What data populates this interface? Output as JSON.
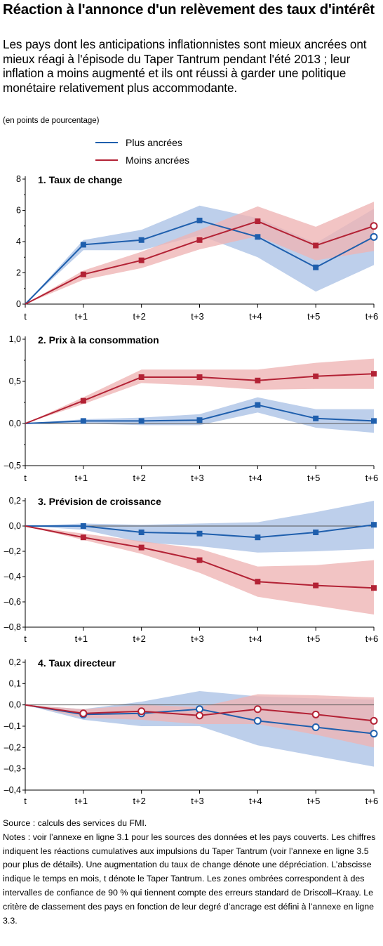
{
  "title": "Réaction à l'annonce d'un relèvement des taux d'intérêt",
  "subtitle": "Les pays dont les anticipations inflationnistes sont mieux ancrées ont mieux réagi à l'épisode du Taper Tantrum pendant l'été 2013 ; leur inflation a moins augmenté et ils ont réussi à garder une politique monétaire relativement plus accommodante.",
  "units": "(en points de pourcentage)",
  "colors": {
    "plus": "#1f5fad",
    "moins": "#b32235",
    "plus_band": "#aac2e6",
    "moins_band": "#eeb3b3"
  },
  "legend": [
    {
      "label": "Plus ancrées",
      "color": "#1f5fad"
    },
    {
      "label": "Moins ancrées",
      "color": "#b32235"
    }
  ],
  "chart_data": [
    {
      "type": "line",
      "title": "1. Taux de change",
      "x": [
        "t",
        "t+1",
        "t+2",
        "t+3",
        "t+4",
        "t+5",
        "t+6"
      ],
      "ylim": [
        0,
        8
      ],
      "yticks": [
        0,
        2,
        4,
        6,
        8
      ],
      "yticklabels": [
        "0",
        "2",
        "4",
        "6",
        "8"
      ],
      "series": [
        {
          "name": "Plus ancrées",
          "values": [
            0,
            3.8,
            4.1,
            5.35,
            4.3,
            2.35,
            4.3
          ],
          "lower": [
            0,
            3.45,
            3.45,
            4.4,
            3.0,
            0.8,
            2.5
          ],
          "upper": [
            0,
            4.1,
            4.75,
            6.3,
            5.5,
            3.9,
            6.1
          ],
          "markers": [
            "none",
            "square",
            "square",
            "square",
            "square",
            "square",
            "circle"
          ]
        },
        {
          "name": "Moins ancrées",
          "values": [
            0,
            1.9,
            2.8,
            4.1,
            5.3,
            3.75,
            5.0
          ],
          "lower": [
            0,
            1.55,
            2.3,
            3.5,
            4.35,
            2.8,
            3.4
          ],
          "upper": [
            0,
            2.15,
            3.35,
            4.75,
            6.25,
            4.95,
            6.55
          ],
          "markers": [
            "none",
            "square",
            "square",
            "square",
            "square",
            "square",
            "circle"
          ]
        }
      ]
    },
    {
      "type": "line",
      "title": "2. Prix à la consommation",
      "x": [
        "t",
        "t+1",
        "t+2",
        "t+3",
        "t+4",
        "t+5",
        "t+6"
      ],
      "ylim": [
        -0.5,
        1.0
      ],
      "yticks": [
        -0.5,
        0,
        0.5,
        1.0
      ],
      "yticklabels": [
        "–0,5",
        "0,0",
        "0,5",
        "1,0"
      ],
      "series": [
        {
          "name": "Plus ancrées",
          "values": [
            0,
            0.03,
            0.03,
            0.04,
            0.22,
            0.06,
            0.03
          ],
          "lower": [
            0,
            0.0,
            -0.02,
            -0.02,
            0.13,
            -0.05,
            -0.11
          ],
          "upper": [
            0,
            0.05,
            0.07,
            0.11,
            0.31,
            0.17,
            0.17
          ],
          "markers": [
            "none",
            "square",
            "square",
            "square",
            "square",
            "square",
            "square"
          ]
        },
        {
          "name": "Moins ancrées",
          "values": [
            0,
            0.27,
            0.55,
            0.55,
            0.51,
            0.56,
            0.59
          ],
          "lower": [
            0,
            0.23,
            0.48,
            0.45,
            0.4,
            0.41,
            0.41
          ],
          "upper": [
            0,
            0.31,
            0.64,
            0.64,
            0.64,
            0.72,
            0.77
          ],
          "markers": [
            "none",
            "square",
            "square",
            "square",
            "square",
            "square",
            "square"
          ]
        }
      ]
    },
    {
      "type": "line",
      "title": "3. Prévision de croissance",
      "x": [
        "t",
        "t+1",
        "t+2",
        "t+3",
        "t+4",
        "t+5",
        "t+6"
      ],
      "ylim": [
        -0.8,
        0.2
      ],
      "yticks": [
        -0.8,
        -0.6,
        -0.4,
        -0.2,
        0,
        0.2
      ],
      "yticklabels": [
        "–0,8",
        "–0,6",
        "–0,4",
        "–0,2",
        "0,0",
        "0,2"
      ],
      "series": [
        {
          "name": "Plus ancrées",
          "values": [
            0,
            0.0,
            -0.05,
            -0.06,
            -0.09,
            -0.05,
            0.01
          ],
          "lower": [
            0,
            -0.03,
            -0.13,
            -0.16,
            -0.21,
            -0.2,
            -0.18
          ],
          "upper": [
            0,
            0.02,
            0.01,
            0.02,
            0.03,
            0.11,
            0.2
          ],
          "markers": [
            "none",
            "square",
            "square",
            "square",
            "square",
            "square",
            "square"
          ]
        },
        {
          "name": "Moins ancrées",
          "values": [
            0,
            -0.09,
            -0.17,
            -0.27,
            -0.44,
            -0.47,
            -0.49
          ],
          "lower": [
            0,
            -0.11,
            -0.22,
            -0.37,
            -0.56,
            -0.63,
            -0.7
          ],
          "upper": [
            0,
            -0.06,
            -0.12,
            -0.18,
            -0.32,
            -0.31,
            -0.27
          ],
          "markers": [
            "none",
            "square",
            "square",
            "square",
            "square",
            "square",
            "square"
          ]
        }
      ]
    },
    {
      "type": "line",
      "title": "4. Taux directeur",
      "x": [
        "t",
        "t+1",
        "t+2",
        "t+3",
        "t+4",
        "t+5",
        "t+6"
      ],
      "ylim": [
        -0.4,
        0.2
      ],
      "yticks": [
        -0.4,
        -0.3,
        -0.2,
        -0.1,
        0,
        0.1,
        0.2
      ],
      "yticklabels": [
        "–0,4",
        "–0,3",
        "–0,2",
        "–0,1",
        "0,0",
        "0,1",
        "0,2"
      ],
      "series": [
        {
          "name": "Plus ancrées",
          "values": [
            0,
            -0.045,
            -0.04,
            -0.02,
            -0.075,
            -0.105,
            -0.135
          ],
          "lower": [
            0,
            -0.07,
            -0.1,
            -0.1,
            -0.19,
            -0.24,
            -0.29
          ],
          "upper": [
            0,
            -0.02,
            0.015,
            0.065,
            0.04,
            0.03,
            0.025
          ],
          "markers": [
            "none",
            "circle",
            "circle",
            "circle",
            "circle",
            "circle",
            "circle"
          ]
        },
        {
          "name": "Moins ancrées",
          "values": [
            0,
            -0.04,
            -0.03,
            -0.05,
            -0.02,
            -0.045,
            -0.075
          ],
          "lower": [
            0,
            -0.06,
            -0.07,
            -0.09,
            -0.09,
            -0.14,
            -0.2
          ],
          "upper": [
            0,
            -0.02,
            0.0,
            -0.01,
            0.05,
            0.045,
            0.035
          ],
          "markers": [
            "none",
            "circle",
            "circle",
            "circle",
            "circle",
            "circle",
            "circle"
          ]
        }
      ]
    }
  ],
  "footer": {
    "source": "Source : calculs des services du FMI.",
    "notes": "Notes : voir l’annexe en ligne 3.1 pour les sources des données et les pays couverts. Les chiffres indiquent les réactions cumulatives aux impulsions du Taper Tantrum (voir l’annexe en ligne 3.5 pour plus de détails). Une augmentation du taux de change dénote une dépréciation. L’abscisse indique le temps en mois, t dénote le Taper Tantrum. Les zones ombrées correspondent à des intervalles de confiance de 90 % qui tiennent compte des erreurs standard de Driscoll–Kraay. Le critère de classement des pays en fonction de leur degré d’ancrage est défini à l’annexe en ligne 3.3."
  }
}
